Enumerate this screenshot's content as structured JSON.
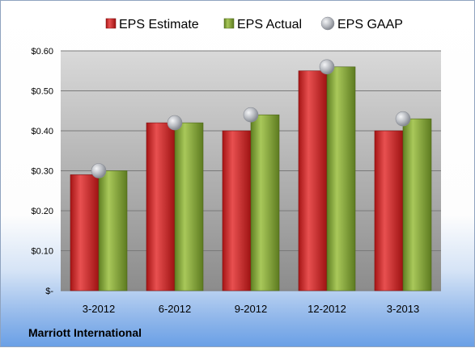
{
  "chart_data": {
    "type": "bar",
    "categories": [
      "3-2012",
      "6-2012",
      "9-2012",
      "12-2012",
      "3-2013"
    ],
    "series": [
      {
        "name": "EPS Estimate",
        "kind": "bar",
        "color": "#cc2a2a",
        "values": [
          0.29,
          0.42,
          0.4,
          0.55,
          0.4
        ]
      },
      {
        "name": "EPS Actual",
        "kind": "bar",
        "color": "#86a83a",
        "values": [
          0.3,
          0.42,
          0.44,
          0.56,
          0.43
        ]
      },
      {
        "name": "EPS GAAP",
        "kind": "marker",
        "color": "#b9bcc2",
        "values": [
          0.3,
          0.42,
          0.44,
          0.56,
          0.43
        ]
      }
    ],
    "ylim": [
      0,
      0.6
    ],
    "yticks": [
      0,
      0.1,
      0.2,
      0.3,
      0.4,
      0.5,
      0.6
    ],
    "ytick_labels": [
      "$-",
      "$0.10",
      "$0.20",
      "$0.30",
      "$0.40",
      "$0.50",
      "$0.60"
    ],
    "grid": true,
    "legend_position": "top"
  },
  "footer": {
    "company": "Marriott International"
  }
}
